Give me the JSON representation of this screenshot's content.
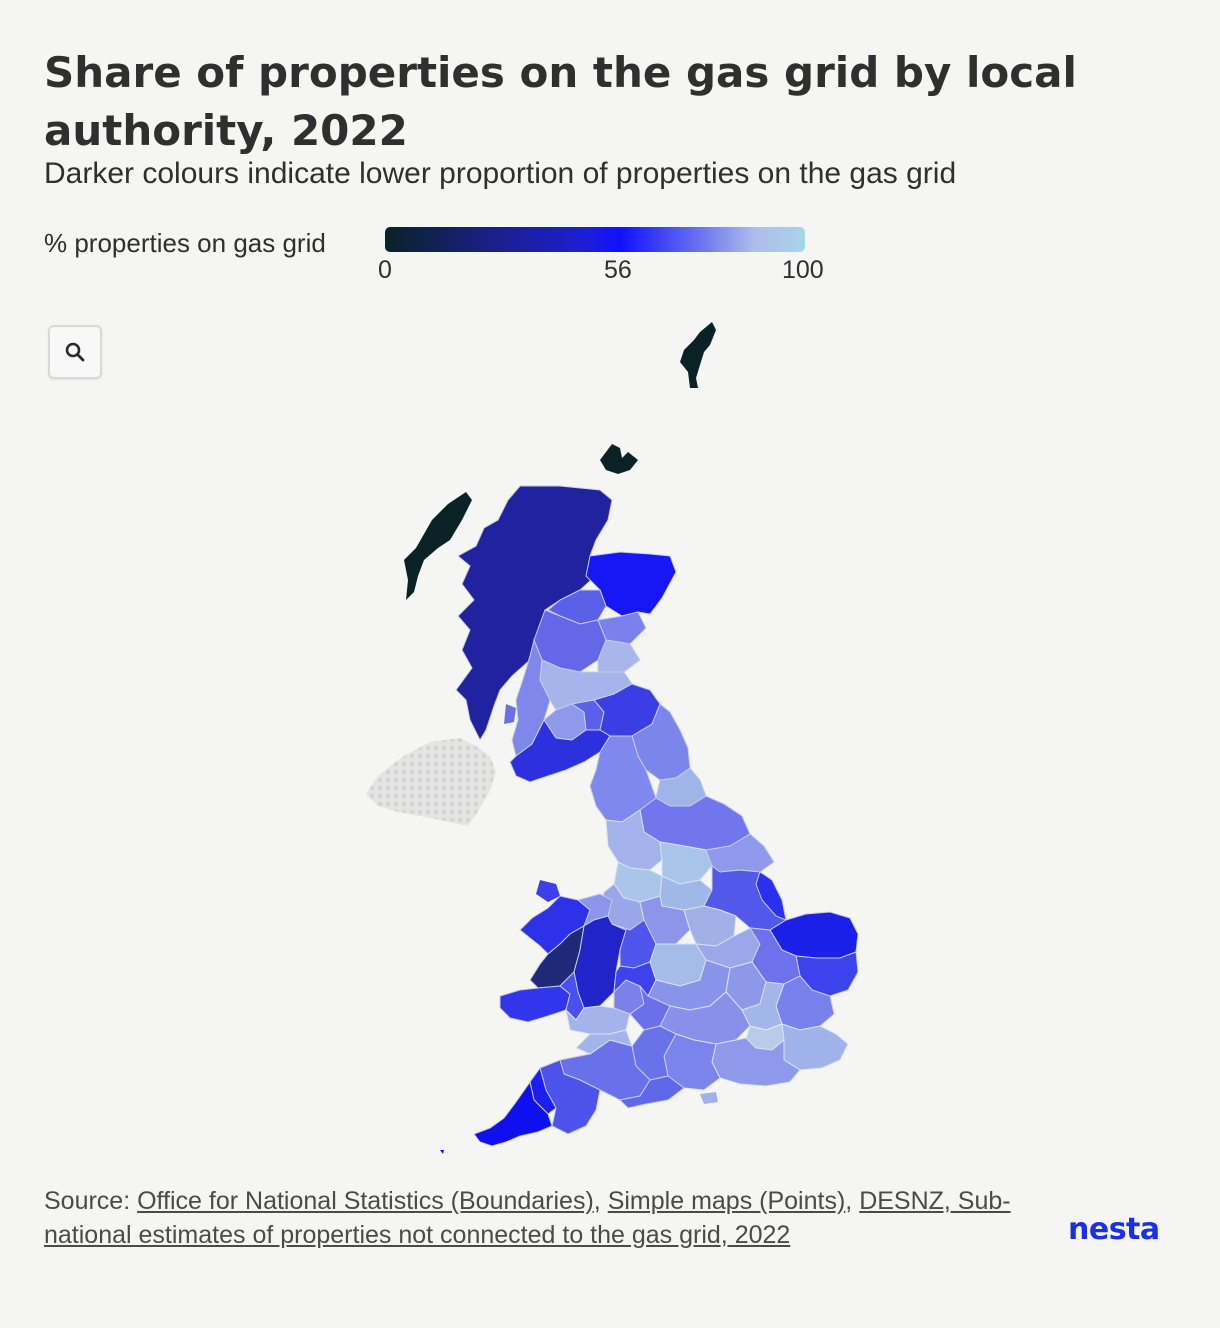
{
  "title": "Share of properties on the gas grid by local authority, 2022",
  "subtitle": "Darker colours indicate lower proportion of properties on the gas grid",
  "legend": {
    "label": "% properties on gas grid",
    "ticks": [
      "0",
      "56",
      "100"
    ],
    "tick_values": [
      0,
      56,
      100
    ],
    "min": 0,
    "max": 100,
    "color_stops": [
      "#0a2226",
      "#1b1f86",
      "#1d1ed6",
      "#1010ff",
      "#6b74ee",
      "#aebcec",
      "#a9d5e8"
    ]
  },
  "controls": {
    "zoom_icon": "search-icon"
  },
  "map_data": {
    "type": "choropleth",
    "regions": [
      {
        "name": "Shetland",
        "value": 0
      },
      {
        "name": "Orkney",
        "value": 0
      },
      {
        "name": "Western Isles",
        "value": 0
      },
      {
        "name": "Highland",
        "value": 25
      },
      {
        "name": "Aberdeenshire",
        "value": 56
      },
      {
        "name": "Perth and Kinross",
        "value": 65
      },
      {
        "name": "Argyll and Bute",
        "value": 70
      },
      {
        "name": "Dumfries and Galloway",
        "value": 45
      },
      {
        "name": "Scottish Borders",
        "value": 50
      },
      {
        "name": "Northumberland",
        "value": 75
      },
      {
        "name": "Cumbria",
        "value": 70
      },
      {
        "name": "North Yorkshire",
        "value": 72
      },
      {
        "name": "Lincolnshire",
        "value": 60
      },
      {
        "name": "Norfolk",
        "value": 45
      },
      {
        "name": "Suffolk",
        "value": 60
      },
      {
        "name": "Gwynedd",
        "value": 40
      },
      {
        "name": "Powys",
        "value": 30
      },
      {
        "name": "Ceredigion",
        "value": 15
      },
      {
        "name": "Pembrokeshire",
        "value": 50
      },
      {
        "name": "Cornwall",
        "value": 48
      },
      {
        "name": "Devon",
        "value": 70
      },
      {
        "name": "Somerset",
        "value": 75
      },
      {
        "name": "Northern Ireland",
        "value": null
      }
    ],
    "no_data_color": "#e3e3e3"
  },
  "source": {
    "prefix": "Source: ",
    "links": [
      "Office for National Statistics (Boundaries)",
      "Simple maps (Points)",
      "DESNZ, Sub-national estimates of properties not connected to the gas grid, 2022"
    ]
  },
  "logo": "nesta"
}
